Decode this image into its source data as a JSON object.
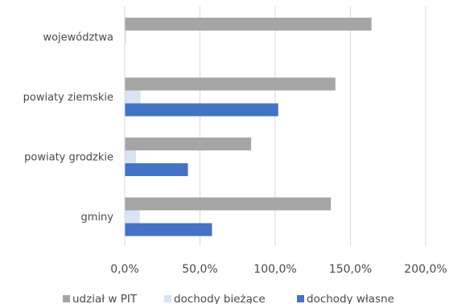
{
  "chart_data": {
    "type": "bar",
    "orientation": "horizontal",
    "categories": [
      "województwa",
      "powiaty ziemskie",
      "powiaty grodzkie",
      "gminy"
    ],
    "series": [
      {
        "name": "udział w PIT",
        "color": "#a5a5a5",
        "values": [
          164,
          140,
          84,
          137
        ]
      },
      {
        "name": "dochody bieżące",
        "color": "#dae3f3",
        "values": [
          1,
          10.5,
          7.5,
          10
        ]
      },
      {
        "name": "dochody własne",
        "color": "#4472c4",
        "values": [
          null,
          102,
          42,
          58
        ]
      }
    ],
    "xlim": [
      0,
      200
    ],
    "xticks": [
      0,
      50,
      100,
      150,
      200
    ],
    "xtick_labels": [
      "0,0%",
      "50,0%",
      "100,0%",
      "150,0%",
      "200,0%"
    ],
    "grid": "vertical",
    "legend_position": "bottom",
    "title": "",
    "xlabel": "",
    "ylabel": ""
  }
}
